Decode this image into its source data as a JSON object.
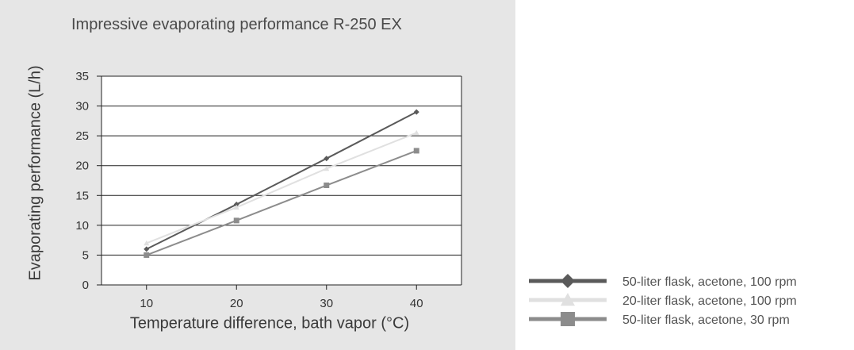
{
  "chart_data": {
    "type": "line",
    "title": "Impressive evaporating performance R-250 EX",
    "xlabel": "Temperature difference, bath vapor (°C)",
    "ylabel": "Evaporating performance (L/h)",
    "x": [
      10,
      20,
      30,
      40
    ],
    "x_ticks": [
      "10",
      "20",
      "30",
      "40"
    ],
    "y_ticks": [
      "0",
      "5",
      "10",
      "15",
      "20",
      "25",
      "30",
      "35"
    ],
    "xlim": [
      5,
      45
    ],
    "ylim": [
      0,
      35
    ],
    "grid": "horizontal",
    "legend_position": "bottom-right",
    "series": [
      {
        "name": "50-liter flask, acetone, 100 rpm",
        "values": [
          6,
          13.5,
          21.2,
          29
        ],
        "color": "#5a5a5a",
        "marker": "diamond"
      },
      {
        "name": "20-liter flask, acetone, 100 rpm",
        "values": [
          7,
          13,
          19.5,
          25.5
        ],
        "color": "#e0e0e0",
        "marker": "triangle"
      },
      {
        "name": "50-liter flask, acetone, 30 rpm",
        "values": [
          5,
          10.8,
          16.7,
          22.5
        ],
        "color": "#8c8c8c",
        "marker": "square"
      }
    ]
  }
}
